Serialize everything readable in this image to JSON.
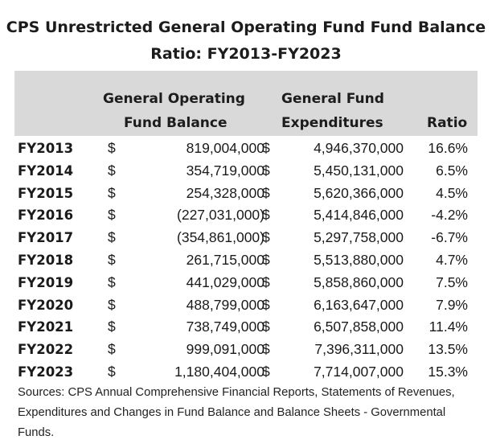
{
  "title_line1": "CPS Unrestricted General Operating Fund Fund Balance",
  "title_line2": "Ratio: FY2013-FY2023",
  "headers": {
    "balance_line1": "General Operating",
    "balance_line2": "Fund Balance",
    "expend_line1": "General Fund",
    "expend_line2": "Expenditures",
    "ratio": "Ratio"
  },
  "currency_symbol": "$",
  "rows": [
    {
      "year": "FY2013",
      "balance": "819,004,000",
      "expenditures": "4,946,370,000",
      "ratio": "16.6%"
    },
    {
      "year": "FY2014",
      "balance": "354,719,000",
      "expenditures": "5,450,131,000",
      "ratio": "6.5%"
    },
    {
      "year": "FY2015",
      "balance": "254,328,000",
      "expenditures": "5,620,366,000",
      "ratio": "4.5%"
    },
    {
      "year": "FY2016",
      "balance": "(227,031,000)",
      "expenditures": "5,414,846,000",
      "ratio": "-4.2%"
    },
    {
      "year": "FY2017",
      "balance": "(354,861,000)",
      "expenditures": "5,297,758,000",
      "ratio": "-6.7%"
    },
    {
      "year": "FY2018",
      "balance": "261,715,000",
      "expenditures": "5,513,880,000",
      "ratio": "4.7%"
    },
    {
      "year": "FY2019",
      "balance": "441,029,000",
      "expenditures": "5,858,860,000",
      "ratio": "7.5%"
    },
    {
      "year": "FY2020",
      "balance": "488,799,000",
      "expenditures": "6,163,647,000",
      "ratio": "7.9%"
    },
    {
      "year": "FY2021",
      "balance": "738,749,000",
      "expenditures": "6,507,858,000",
      "ratio": "11.4%"
    },
    {
      "year": "FY2022",
      "balance": "999,091,000",
      "expenditures": "7,396,311,000",
      "ratio": "13.5%"
    },
    {
      "year": "FY2023",
      "balance": "1,180,404,000",
      "expenditures": "7,714,007,000",
      "ratio": "15.3%"
    }
  ],
  "source": "Sources: CPS Annual Comprehensive Financial Reports, Statements of Revenues, Expenditures and Changes in Fund Balance and Balance Sheets - Governmental Funds."
}
